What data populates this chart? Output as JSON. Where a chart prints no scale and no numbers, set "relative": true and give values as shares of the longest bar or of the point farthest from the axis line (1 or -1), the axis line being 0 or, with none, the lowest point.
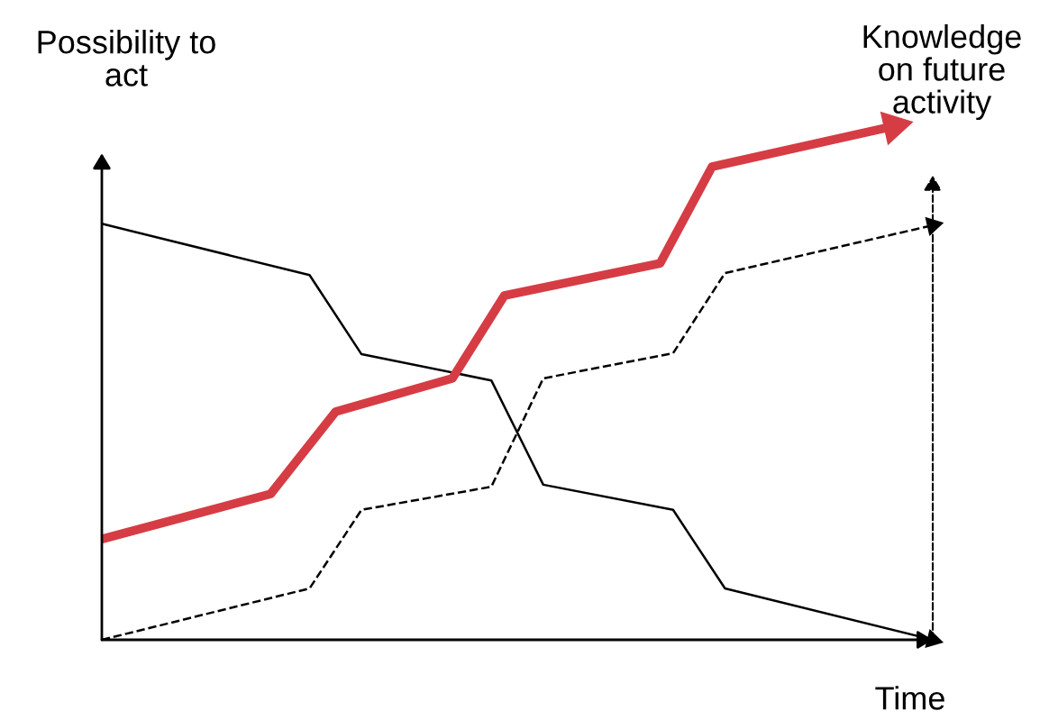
{
  "chart_data": {
    "type": "line",
    "relative": true,
    "ylabel": "Possibility to\nact",
    "y2label": "Knowledge\non future\nactivity",
    "xlabel": "Time",
    "marker": "none",
    "categories": [
      null,
      null,
      null,
      null,
      null,
      null,
      null,
      null,
      null,
      null,
      null,
      null,
      null,
      null,
      null,
      null,
      null,
      null,
      null,
      null,
      null,
      null,
      null,
      null,
      null,
      null,
      null,
      null,
      null,
      null,
      null,
      null,
      null,
      null,
      null,
      null,
      null,
      null,
      null,
      null,
      null,
      null,
      null,
      null,
      null,
      null,
      null,
      null,
      null,
      null,
      null,
      null,
      null,
      null,
      null,
      null,
      null,
      null,
      null,
      null,
      null,
      null,
      null,
      null,
      null
    ],
    "series": [
      {
        "color": "#000000",
        "line_style": "solid",
        "values": [
          0.81,
          null,
          null,
          null,
          null,
          null,
          null,
          null,
          null,
          null,
          null,
          null,
          null,
          null,
          null,
          null,
          0.71,
          null,
          null,
          null,
          0.556,
          null,
          null,
          null,
          null,
          null,
          null,
          null,
          null,
          null,
          0.505,
          null,
          null,
          null,
          0.302,
          null,
          null,
          null,
          null,
          null,
          null,
          null,
          null,
          null,
          0.253,
          null,
          null,
          null,
          0.1,
          null,
          null,
          null,
          null,
          null,
          null,
          null,
          null,
          null,
          null,
          null,
          null,
          null,
          null,
          null,
          0
        ]
      },
      {
        "color": "#d63c44",
        "line_style": "solid",
        "values": [
          0.196,
          null,
          null,
          null,
          null,
          null,
          null,
          null,
          null,
          null,
          null,
          null,
          null,
          0.284,
          null,
          null,
          null,
          null,
          0.444,
          null,
          null,
          null,
          null,
          null,
          null,
          null,
          null,
          0.509,
          null,
          null,
          null,
          0.67,
          null,
          null,
          null,
          null,
          null,
          null,
          null,
          null,
          null,
          null,
          null,
          0.733,
          null,
          null,
          null,
          0.921,
          null,
          null,
          null,
          null,
          null,
          null,
          null,
          null,
          null,
          null,
          null,
          null,
          null,
          1.0,
          null,
          null,
          null
        ]
      },
      {
        "color": "#000000",
        "line_style": "dashed",
        "values": [
          0,
          null,
          null,
          null,
          null,
          null,
          null,
          null,
          null,
          null,
          null,
          null,
          null,
          null,
          null,
          null,
          0.1,
          null,
          null,
          null,
          0.253,
          null,
          null,
          null,
          null,
          null,
          null,
          null,
          null,
          null,
          0.298,
          null,
          null,
          null,
          0.509,
          null,
          null,
          null,
          null,
          null,
          null,
          null,
          null,
          null,
          0.558,
          null,
          null,
          null,
          0.714,
          null,
          null,
          null,
          null,
          null,
          null,
          null,
          null,
          null,
          null,
          null,
          null,
          null,
          null,
          null,
          0.807
        ]
      }
    ]
  }
}
